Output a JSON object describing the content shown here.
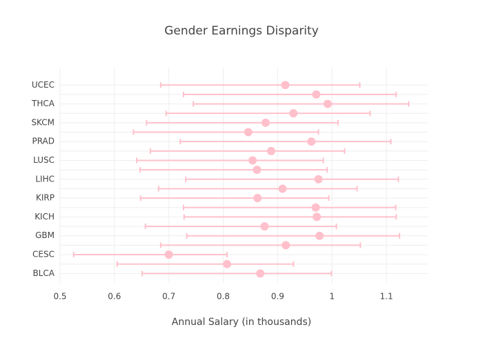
{
  "chart_data": {
    "type": "dot-errorbar",
    "title": "Gender Earnings Disparity",
    "x_label": "Annual Salary (in thousands)",
    "categories": [
      "BLCA",
      null,
      "CESC",
      null,
      "GBM",
      null,
      "KICH",
      null,
      "KIRP",
      null,
      "LIHC",
      null,
      "LUSC",
      null,
      "PRAD",
      null,
      "SKCM",
      null,
      "THCA",
      null,
      "UCEC"
    ],
    "series": [
      {
        "color": "#ffc0cb",
        "values": [
          0.868,
          0.807,
          0.7,
          0.915,
          0.977,
          0.876,
          0.972,
          0.97,
          0.863,
          0.909,
          0.975,
          0.862,
          0.854,
          0.888,
          0.962,
          0.846,
          0.878,
          0.929,
          0.992,
          0.971,
          0.914
        ],
        "error_minus": [
          0.217,
          0.202,
          0.175,
          0.23,
          0.244,
          0.219,
          0.244,
          0.243,
          0.215,
          0.228,
          0.244,
          0.215,
          0.213,
          0.222,
          0.241,
          0.211,
          0.219,
          0.234,
          0.247,
          0.244,
          0.229
        ],
        "error_plus": [
          0.131,
          0.122,
          0.107,
          0.137,
          0.147,
          0.132,
          0.146,
          0.147,
          0.131,
          0.137,
          0.147,
          0.129,
          0.13,
          0.135,
          0.146,
          0.129,
          0.133,
          0.141,
          0.149,
          0.147,
          0.137
        ]
      }
    ],
    "xlim": [
      0.5,
      1.176
    ],
    "xticks": [
      0.5,
      0.6,
      0.7,
      0.8,
      0.9,
      1,
      1.1
    ],
    "grid": true
  }
}
